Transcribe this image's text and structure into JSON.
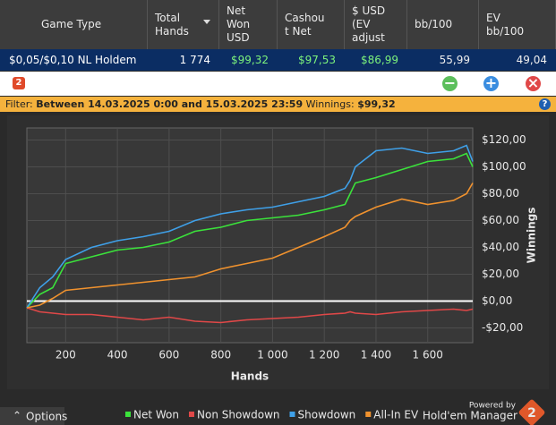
{
  "table": {
    "columns": [
      "Game Type",
      "Total\nHands",
      "Net\nWon\nUSD",
      "Cashou\nt Net",
      "$ USD\n(EV\nadjust",
      "bb/100",
      "EV\nbb/100"
    ],
    "rows": [
      [
        "$0,05/$0,10 NL Holdem",
        "1 774",
        "$99,32",
        "$97,53",
        "$86,99",
        "55,99",
        "49,04"
      ]
    ]
  },
  "filter": {
    "label": "Filter:",
    "text": "Between 14.03.2025 0:00 and 15.03.2025 23:59",
    "winnings_label": "Winnings:",
    "winnings": "$99,32"
  },
  "chart_data": {
    "type": "line",
    "x_label": "Hands",
    "y_label": "Winnings",
    "x": [
      50,
      100,
      150,
      200,
      300,
      400,
      500,
      600,
      700,
      800,
      900,
      1000,
      1100,
      1200,
      1280,
      1300,
      1320,
      1400,
      1500,
      1600,
      1700,
      1750,
      1774
    ],
    "series": [
      {
        "name": "Net Won",
        "color": "#3be23b",
        "values": [
          -5,
          5,
          10,
          28,
          33,
          38,
          40,
          44,
          52,
          55,
          60,
          62,
          64,
          68,
          72,
          80,
          88,
          92,
          98,
          104,
          106,
          110,
          100
        ]
      },
      {
        "name": "Non Showdown",
        "color": "#e04848",
        "values": [
          -5,
          -8,
          -9,
          -10,
          -10,
          -12,
          -14,
          -12,
          -15,
          -16,
          -14,
          -13,
          -12,
          -10,
          -9,
          -8,
          -9,
          -10,
          -8,
          -7,
          -6,
          -7,
          -6
        ]
      },
      {
        "name": "Showdown",
        "color": "#3fa0e8",
        "values": [
          -5,
          10,
          18,
          31,
          40,
          45,
          48,
          52,
          60,
          65,
          68,
          70,
          74,
          78,
          84,
          90,
          100,
          112,
          114,
          110,
          112,
          116,
          104
        ]
      },
      {
        "name": "All-In EV",
        "color": "#f0922e",
        "values": [
          -5,
          -3,
          2,
          8,
          10,
          12,
          14,
          16,
          18,
          24,
          28,
          32,
          40,
          48,
          55,
          60,
          63,
          70,
          76,
          72,
          75,
          80,
          88
        ]
      }
    ],
    "xlim": [
      50,
      1774
    ],
    "ylim": [
      -31,
      129
    ],
    "xticks": [
      200,
      400,
      600,
      800,
      {
        "value": 1000,
        "label": "1 000"
      },
      {
        "value": 1200,
        "label": "1 200"
      },
      {
        "value": 1400,
        "label": "1 400"
      },
      {
        "value": 1600,
        "label": "1 600"
      }
    ],
    "yticks": [
      {
        "value": -20,
        "label": "-$20,00"
      },
      {
        "value": 0,
        "label": "$0,00"
      },
      {
        "value": 20,
        "label": "$20,00"
      },
      {
        "value": 40,
        "label": "$40,00"
      },
      {
        "value": 60,
        "label": "$60,00"
      },
      {
        "value": 80,
        "label": "$80,00"
      },
      {
        "value": 100,
        "label": "$100,00"
      },
      {
        "value": 120,
        "label": "$120,00"
      }
    ],
    "grid": true
  },
  "footer": {
    "options": "Options",
    "powered_by": "Powered by",
    "brand": "Hold'em Manager",
    "logo": "2"
  }
}
